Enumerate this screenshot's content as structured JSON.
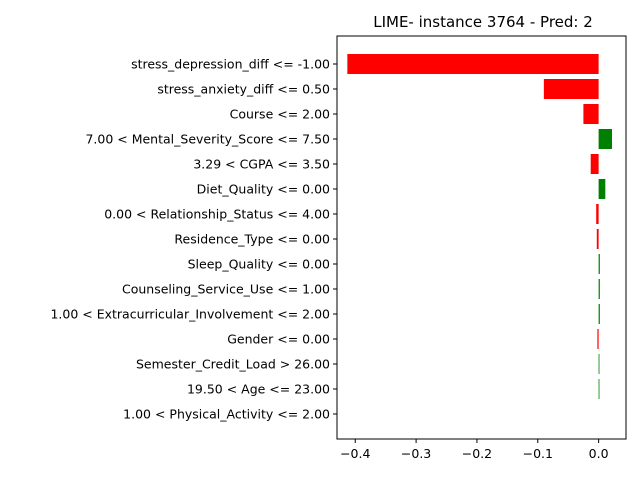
{
  "chart_data": {
    "type": "bar",
    "orientation": "horizontal",
    "title": "LIME- instance 3764 - Pred: 2",
    "xlabel": "",
    "ylabel": "",
    "xlim": [
      -0.43,
      0.045
    ],
    "xticks": [
      -0.4,
      -0.3,
      -0.2,
      -0.1,
      0.0
    ],
    "xtick_labels": [
      "−0.4",
      "−0.3",
      "−0.2",
      "−0.1",
      "0.0"
    ],
    "grid": false,
    "legend": "none",
    "positive_color": "#008000",
    "negative_color": "#ff0000",
    "categories": [
      "stress_depression_diff <= -1.00",
      "stress_anxiety_diff <= 0.50",
      "Course <= 2.00",
      "7.00 < Mental_Severity_Score <= 7.50",
      "3.29 < CGPA <= 3.50",
      "Diet_Quality <= 0.00",
      "0.00 < Relationship_Status <= 4.00",
      "Residence_Type <= 0.00",
      "Sleep_Quality <= 0.00",
      "Counseling_Service_Use <= 1.00",
      "1.00 < Extracurricular_Involvement <= 2.00",
      "Gender <= 0.00",
      "Semester_Credit_Load > 26.00",
      "19.50 < Age <= 23.00",
      "1.00 < Physical_Activity <= 2.00"
    ],
    "values": [
      -0.413,
      -0.09,
      -0.025,
      0.022,
      -0.013,
      0.011,
      -0.004,
      -0.003,
      0.002,
      0.002,
      0.002,
      -0.002,
      0.001,
      0.001,
      0.0
    ]
  }
}
